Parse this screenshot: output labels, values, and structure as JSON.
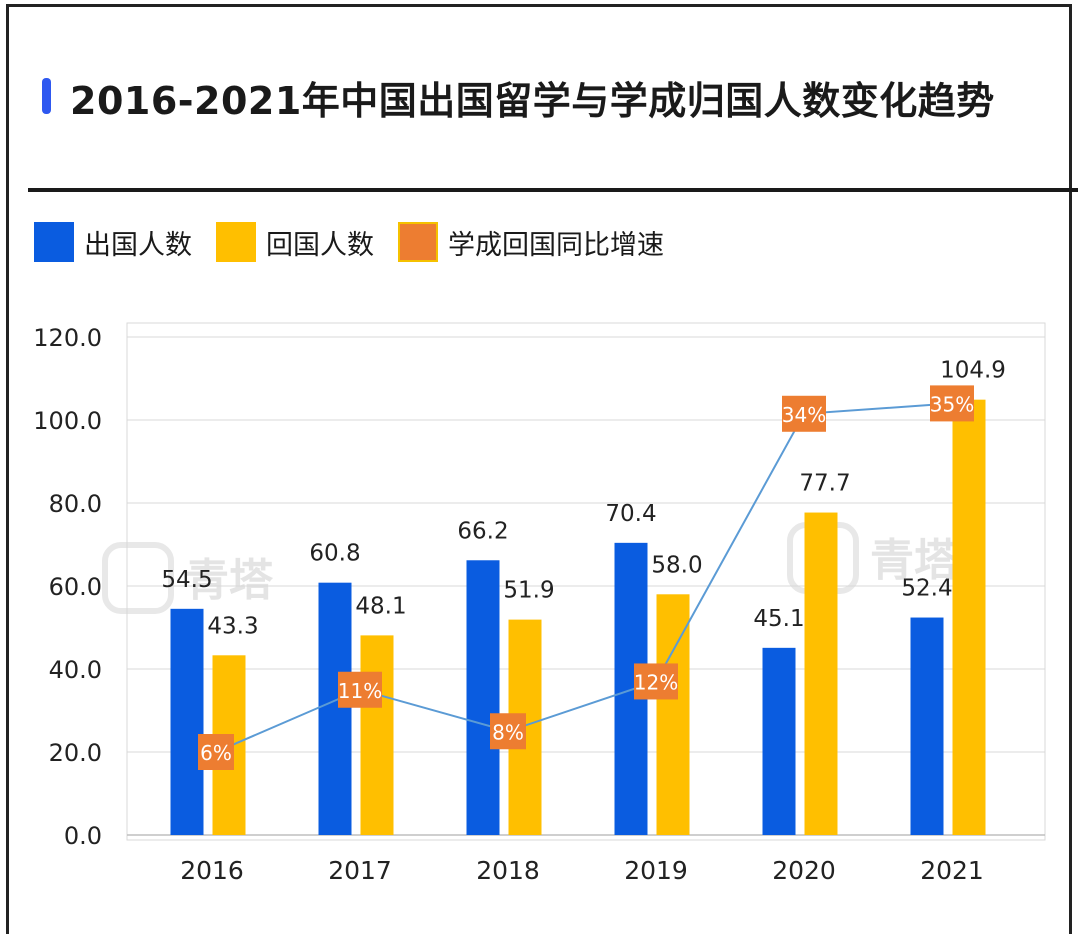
{
  "title": "2016-2021年中国出国留学与学成归国人数变化趋势",
  "legend": {
    "items": [
      {
        "label": "出国人数",
        "color": "#0a5ce0"
      },
      {
        "label": "回国人数",
        "color": "#ffbf00"
      },
      {
        "label": "学成回国同比增速",
        "color": "#ed7d31"
      }
    ]
  },
  "watermark": {
    "text": "青塔",
    "icon": "qingta-logo-icon"
  },
  "colors": {
    "accent": "#2e58f0",
    "line": "#5b9bd5",
    "grid": "#d9d9d9",
    "marker_text": "#ffffff"
  },
  "chart_data": {
    "type": "bar",
    "categories": [
      "2016",
      "2017",
      "2018",
      "2019",
      "2020",
      "2021"
    ],
    "series": [
      {
        "name": "出国人数",
        "values": [
          54.5,
          60.8,
          66.2,
          70.4,
          45.1,
          52.4
        ],
        "labels": [
          "54.5",
          "60.8",
          "66.2",
          "70.4",
          "45.1",
          "52.4"
        ]
      },
      {
        "name": "回国人数",
        "values": [
          43.3,
          48.1,
          51.9,
          58.0,
          77.7,
          104.9
        ],
        "labels": [
          "43.3",
          "48.1",
          "51.9",
          "58.0",
          "77.7",
          "104.9"
        ]
      }
    ],
    "line_series": {
      "name": "学成回国同比增速",
      "labels": [
        "6%",
        "11%",
        "8%",
        "12%",
        "34%",
        "35%"
      ],
      "plot_y": [
        20,
        35,
        25,
        37,
        101.5,
        104
      ]
    },
    "ylim": [
      0,
      120
    ],
    "yticks": [
      "0.0",
      "20.0",
      "40.0",
      "60.0",
      "80.0",
      "100.0",
      "120.0"
    ],
    "grid": true,
    "legend_position": "top-left"
  }
}
